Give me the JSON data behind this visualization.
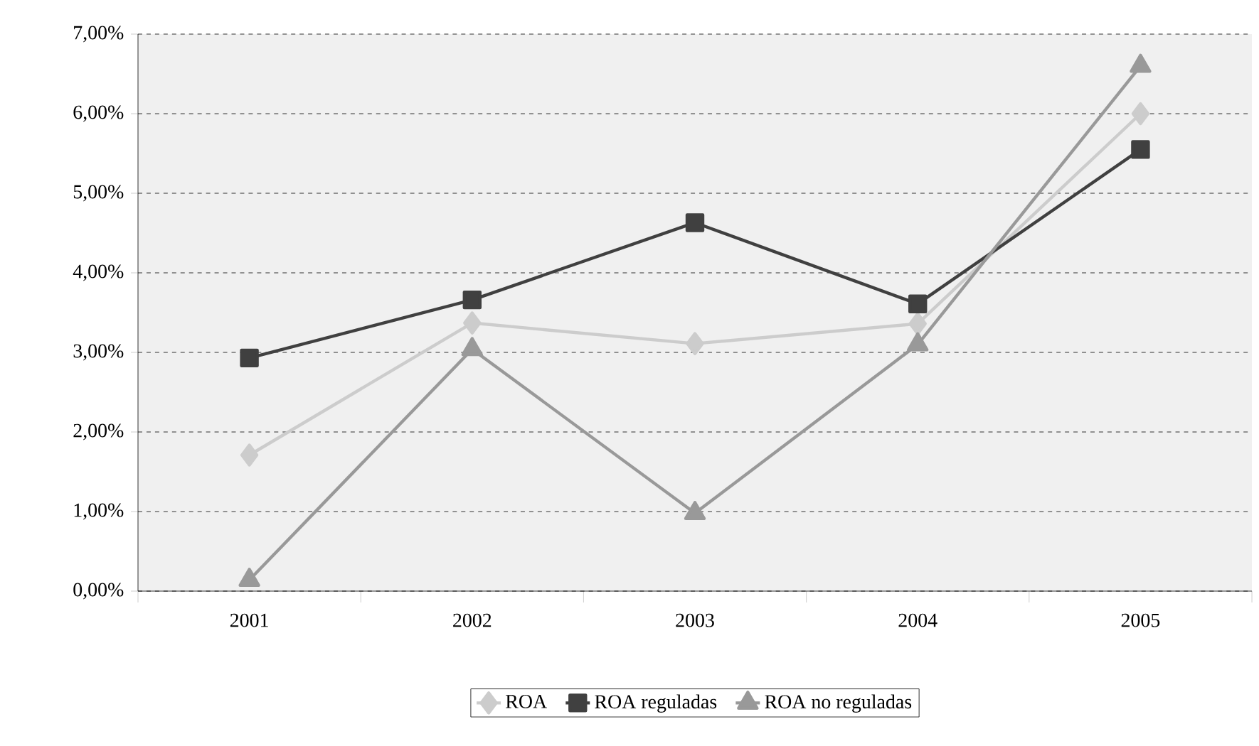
{
  "chart_data": {
    "type": "line",
    "categories": [
      "2001",
      "2002",
      "2003",
      "2004",
      "2005"
    ],
    "ylim": [
      0,
      7
    ],
    "yticks": [
      {
        "value": 0,
        "label": "0,00%"
      },
      {
        "value": 1,
        "label": "1,00%"
      },
      {
        "value": 2,
        "label": "2,00%"
      },
      {
        "value": 3,
        "label": "3,00%"
      },
      {
        "value": 4,
        "label": "4,00%"
      },
      {
        "value": 5,
        "label": "5,00%"
      },
      {
        "value": 6,
        "label": "6,00%"
      },
      {
        "value": 7,
        "label": "7,00%"
      }
    ],
    "grid": "y",
    "legend": "bottom",
    "line_style": "solid",
    "series": [
      {
        "name": "ROA",
        "color": "#cccccc",
        "marker": "diamond",
        "values": [
          1.71,
          3.37,
          3.11,
          3.36,
          6.0
        ]
      },
      {
        "name": "ROA reguladas",
        "color": "#404040",
        "marker": "square",
        "values": [
          2.93,
          3.66,
          4.63,
          3.61,
          5.55
        ]
      },
      {
        "name": "ROA no reguladas",
        "color": "#999999",
        "marker": "triangle",
        "values": [
          0.14,
          3.04,
          0.98,
          3.1,
          6.6
        ]
      }
    ]
  }
}
